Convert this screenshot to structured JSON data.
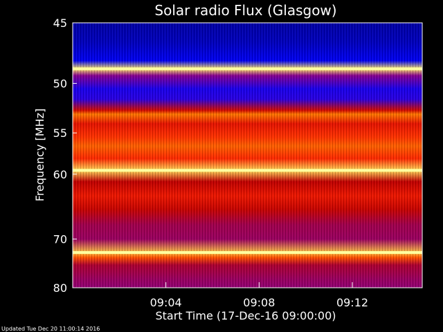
{
  "chart_data": {
    "type": "heatmap",
    "title": "Solar radio Flux (Glasgow)",
    "ylabel": "Frequency [MHz]",
    "xlabel": "Start Time (17-Dec-16 09:00:00)",
    "y_range_mhz": [
      45,
      80
    ],
    "y_scale": "reciprocal",
    "y_ticks": [
      45,
      50,
      55,
      60,
      70,
      80
    ],
    "y_tick_labels": [
      "45",
      "50",
      "55",
      "60",
      "70",
      "80"
    ],
    "x_range": [
      "09:00:00",
      "09:15:00"
    ],
    "x_ticks": [
      "09:04",
      "09:08",
      "09:12"
    ],
    "x_tick_labels": [
      "09:04",
      "09:08",
      "09:12"
    ],
    "grid": false,
    "colormap": [
      "#000080",
      "#0000ff",
      "#8000a0",
      "#c00000",
      "#ff2000",
      "#ff8000",
      "#ffff80"
    ],
    "intensity_profile": [
      {
        "mhz": 45.0,
        "level": 0.05
      },
      {
        "mhz": 46.5,
        "level": 0.08
      },
      {
        "mhz": 48.0,
        "level": 0.15
      },
      {
        "mhz": 48.7,
        "level": 0.97
      },
      {
        "mhz": 49.3,
        "level": 0.35
      },
      {
        "mhz": 50.5,
        "level": 0.2
      },
      {
        "mhz": 51.5,
        "level": 0.22
      },
      {
        "mhz": 52.6,
        "level": 0.55
      },
      {
        "mhz": 53.0,
        "level": 0.82
      },
      {
        "mhz": 54.0,
        "level": 0.6
      },
      {
        "mhz": 55.5,
        "level": 0.7
      },
      {
        "mhz": 56.5,
        "level": 0.78
      },
      {
        "mhz": 58.0,
        "level": 0.68
      },
      {
        "mhz": 59.5,
        "level": 0.95
      },
      {
        "mhz": 61.0,
        "level": 0.5
      },
      {
        "mhz": 63.0,
        "level": 0.62
      },
      {
        "mhz": 65.0,
        "level": 0.52
      },
      {
        "mhz": 67.5,
        "level": 0.42
      },
      {
        "mhz": 70.0,
        "level": 0.4
      },
      {
        "mhz": 72.5,
        "level": 0.92
      },
      {
        "mhz": 73.5,
        "level": 0.75
      },
      {
        "mhz": 75.0,
        "level": 0.45
      },
      {
        "mhz": 78.0,
        "level": 0.4
      },
      {
        "mhz": 80.0,
        "level": 0.38
      }
    ]
  },
  "footer": {
    "updated": "Updated Tue Dec 20 11:00:14 2016"
  }
}
